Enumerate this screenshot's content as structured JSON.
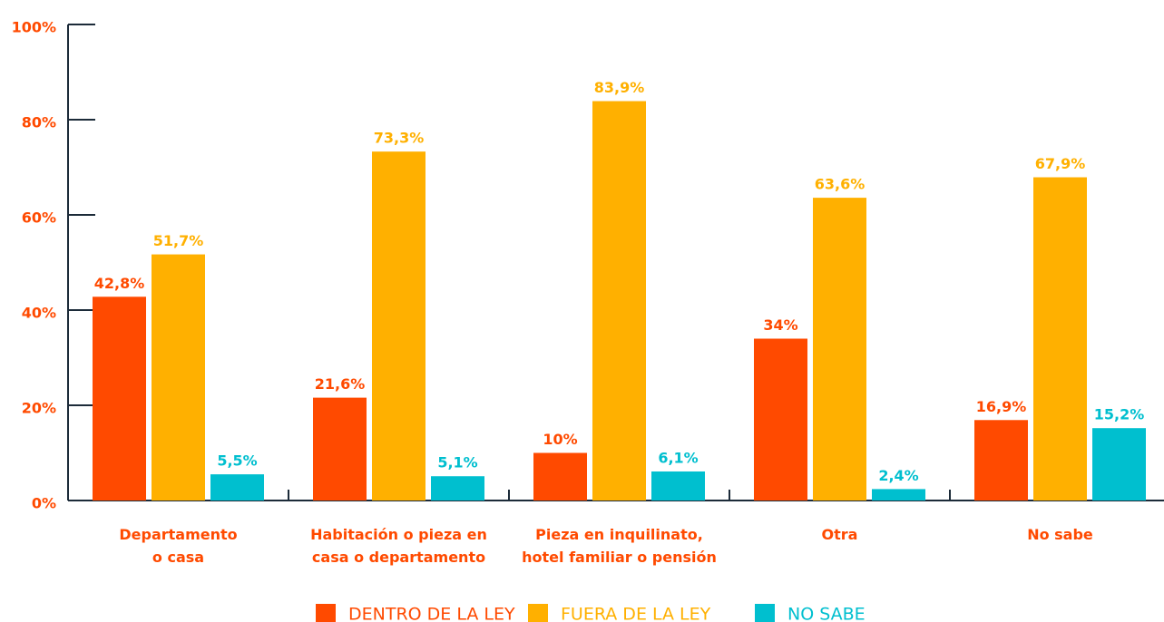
{
  "chart_data": {
    "type": "bar",
    "categories": [
      "Departamento\no casa",
      "Habitación o pieza en\ncasa o departamento",
      "Pieza en inquilinato,\nhotel familiar o pensión",
      "Otra",
      "No sabe"
    ],
    "series": [
      {
        "name": "DENTRO DE LA LEY",
        "color": "#ff4a00",
        "values": [
          42.8,
          21.6,
          10,
          34,
          16.9
        ],
        "value_labels": [
          "42,8%",
          "21,6%",
          "10%",
          "34%",
          "16,9%"
        ]
      },
      {
        "name": "FUERA DE LA LEY",
        "color": "#ffb000",
        "values": [
          51.7,
          73.3,
          83.9,
          63.6,
          67.9
        ],
        "value_labels": [
          "51,7%",
          "73,3%",
          "83,9%",
          "63,6%",
          "67,9%"
        ]
      },
      {
        "name": "NO SABE",
        "color": "#00bfcf",
        "values": [
          5.5,
          5.1,
          6.1,
          2.4,
          15.2
        ],
        "value_labels": [
          "5,5%",
          "5,1%",
          "6,1%",
          "2,4%",
          "15,2%"
        ]
      }
    ],
    "ylim": [
      0,
      100
    ],
    "yticks": [
      {
        "value": 0,
        "label": "0%"
      },
      {
        "value": 20,
        "label": "20%"
      },
      {
        "value": 40,
        "label": "40%"
      },
      {
        "value": 60,
        "label": "60%"
      },
      {
        "value": 80,
        "label": "80%"
      },
      {
        "value": 100,
        "label": "100%"
      }
    ],
    "legend": "bottom"
  }
}
